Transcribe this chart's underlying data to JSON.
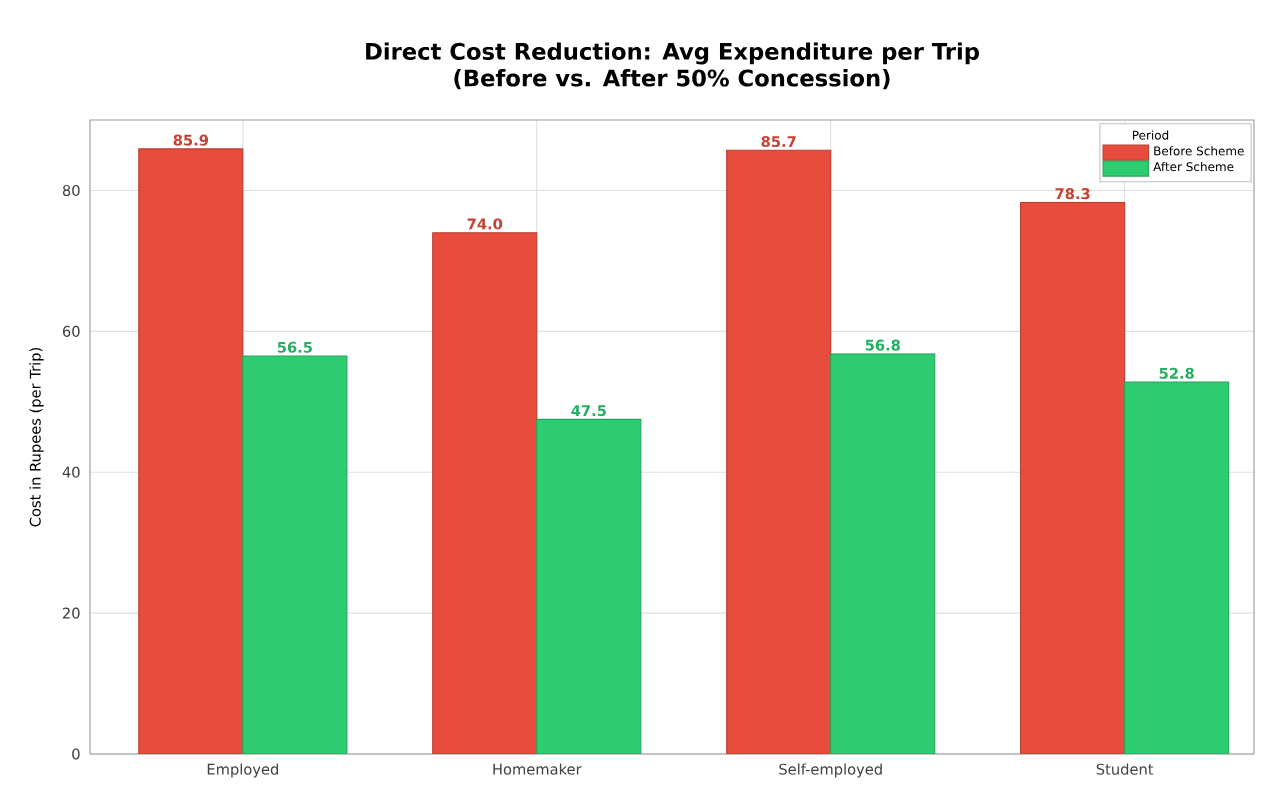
{
  "chart_data": {
    "type": "bar",
    "title": "Direct Cost Reduction: Avg Expenditure per Trip\n(Before vs. After 50% Concession)",
    "ylabel": "Cost in Rupees (per Trip)",
    "legend_title": "Period",
    "categories": [
      "Employed",
      "Homemaker",
      "Self-employed",
      "Student"
    ],
    "series": [
      {
        "name": "Before Scheme",
        "color": "#e74c3c",
        "values": [
          85.9,
          74.0,
          85.7,
          78.3
        ],
        "value_labels": [
          "85.9",
          "74.0",
          "85.7",
          "78.3"
        ]
      },
      {
        "name": "After Scheme",
        "color": "#2ecc71",
        "values": [
          56.5,
          47.5,
          56.8,
          52.8
        ],
        "value_labels": [
          "56.5",
          "47.5",
          "56.8",
          "52.8"
        ]
      }
    ],
    "ylim": [
      0,
      90
    ],
    "yticks": [
      0,
      20,
      40,
      60,
      80
    ],
    "grid": true,
    "legend": "top right"
  }
}
